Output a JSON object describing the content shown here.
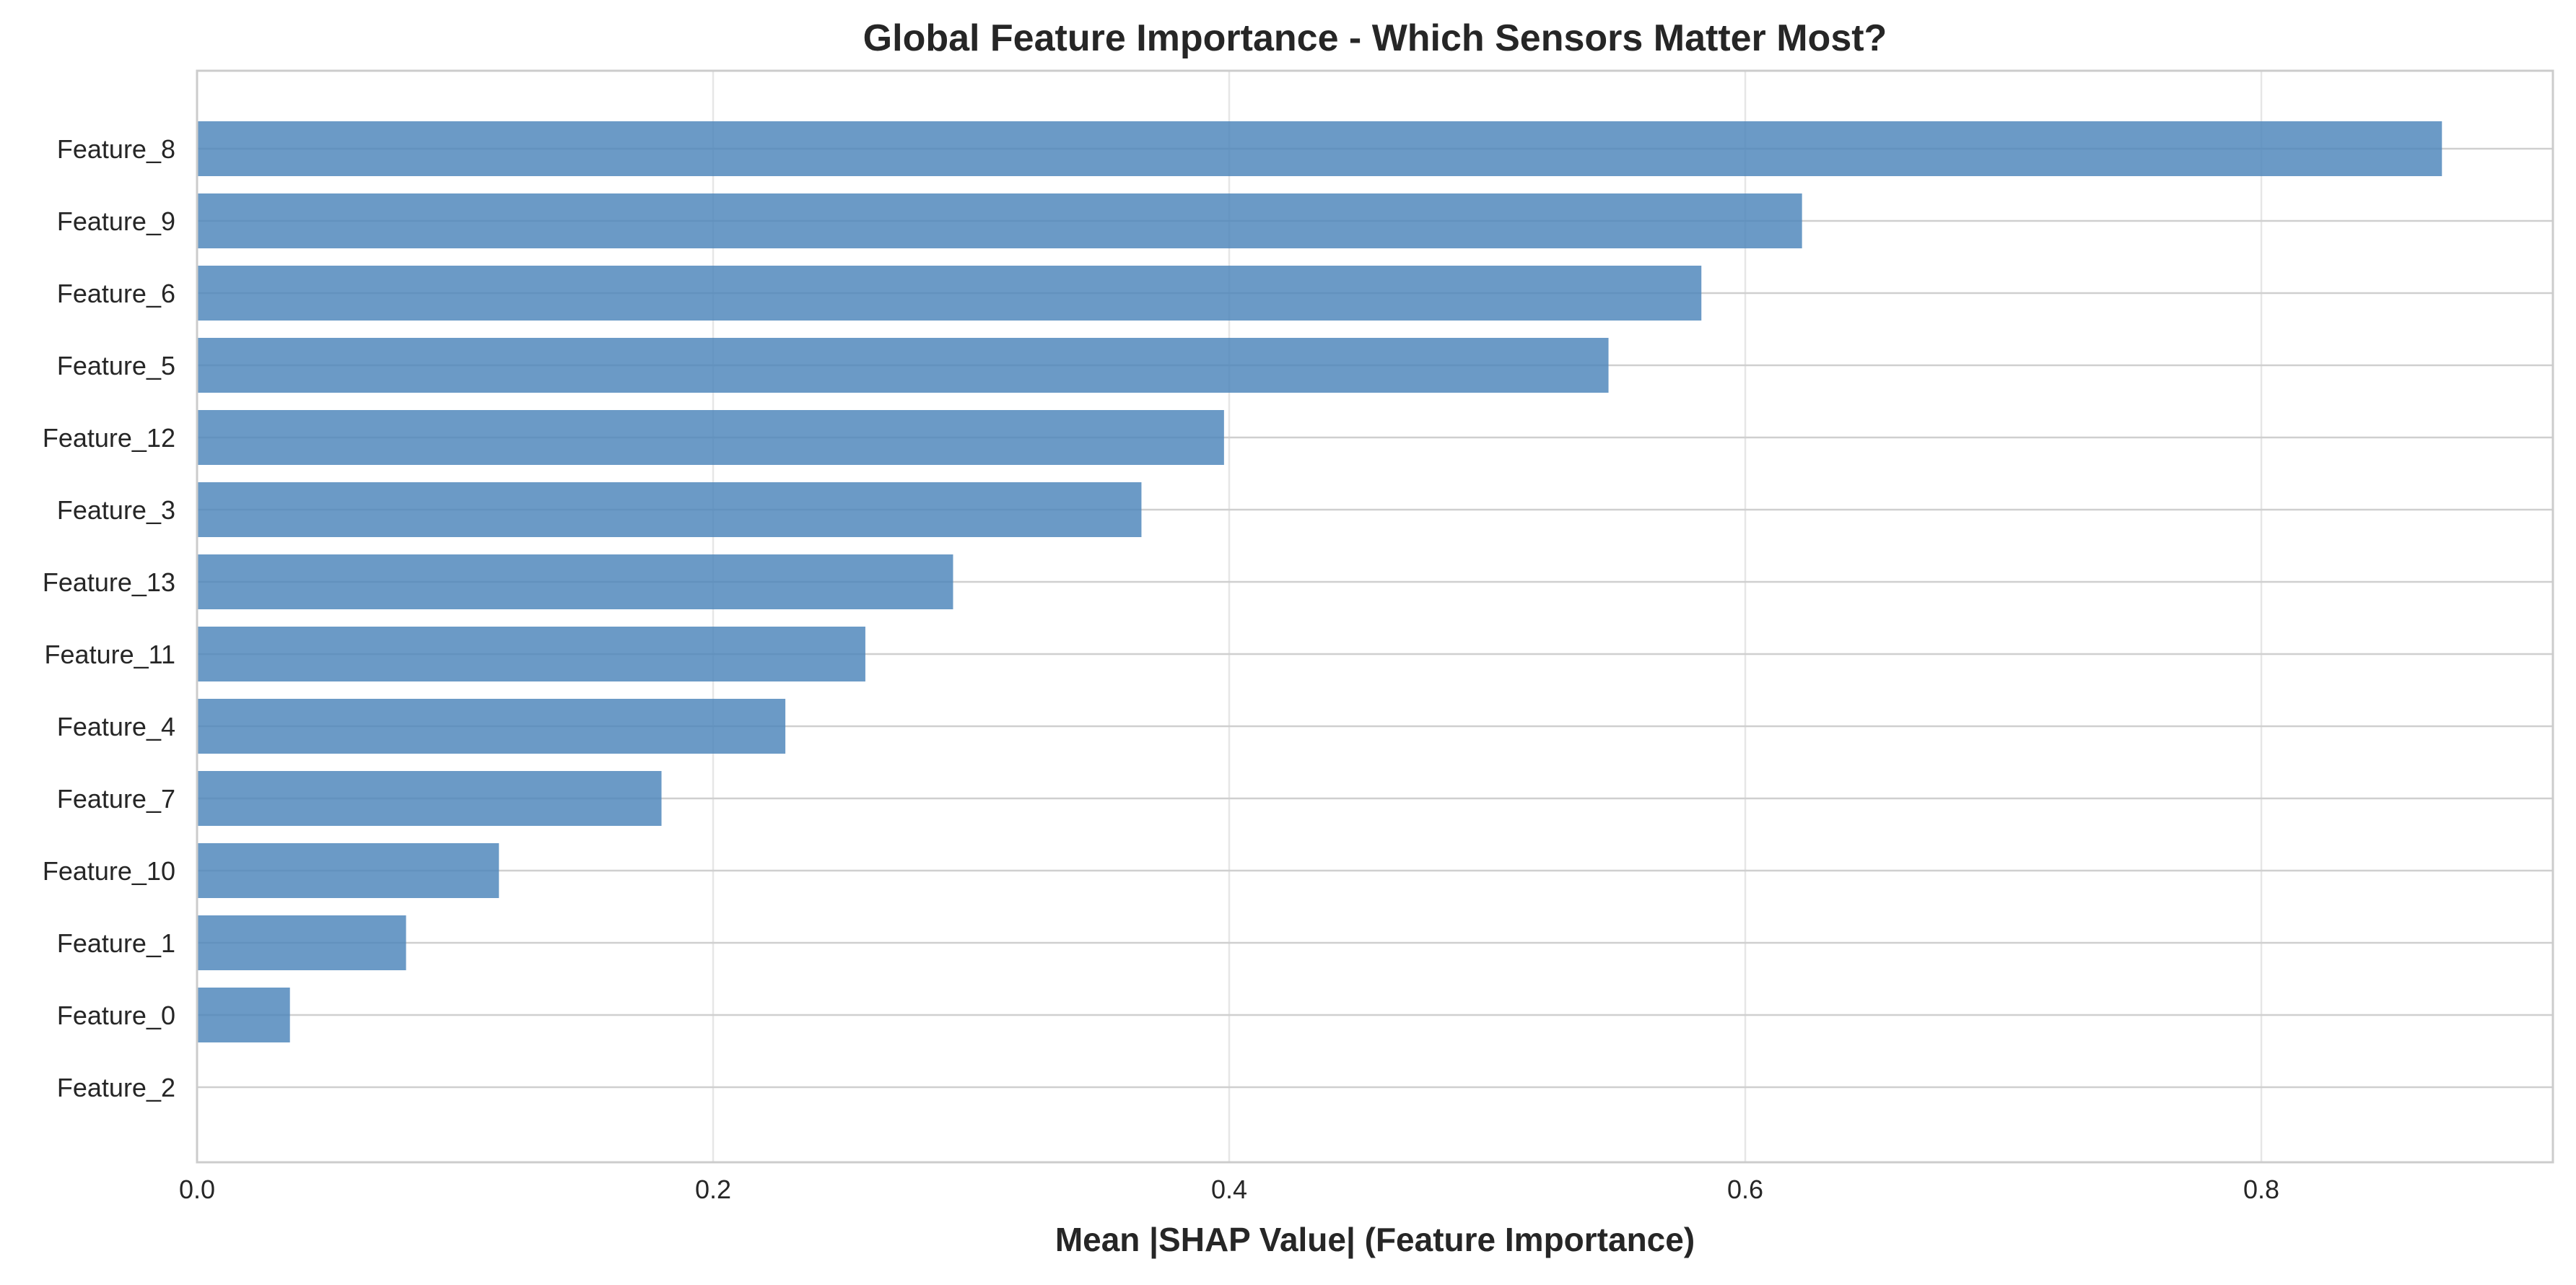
{
  "chart_data": {
    "type": "bar",
    "orientation": "horizontal",
    "title": "Global Feature Importance - Which Sensors Matter Most?",
    "xlabel": "Mean |SHAP Value| (Feature Importance)",
    "ylabel": "",
    "categories": [
      "Feature_8",
      "Feature_9",
      "Feature_6",
      "Feature_5",
      "Feature_12",
      "Feature_3",
      "Feature_13",
      "Feature_11",
      "Feature_4",
      "Feature_7",
      "Feature_10",
      "Feature_1",
      "Feature_0",
      "Feature_2"
    ],
    "values": [
      0.87,
      0.622,
      0.583,
      0.547,
      0.398,
      0.366,
      0.293,
      0.259,
      0.228,
      0.18,
      0.117,
      0.081,
      0.036,
      0.0
    ],
    "xlim": [
      0.0,
      0.913
    ],
    "xticks": [
      0.0,
      0.2,
      0.4,
      0.6,
      0.8
    ],
    "xtick_labels": [
      "0.0",
      "0.2",
      "0.4",
      "0.6",
      "0.8"
    ],
    "bar_color": "#4f87bb",
    "grid": true,
    "grid_color": "#e6e6e6",
    "frame_color": "#cccccc"
  }
}
